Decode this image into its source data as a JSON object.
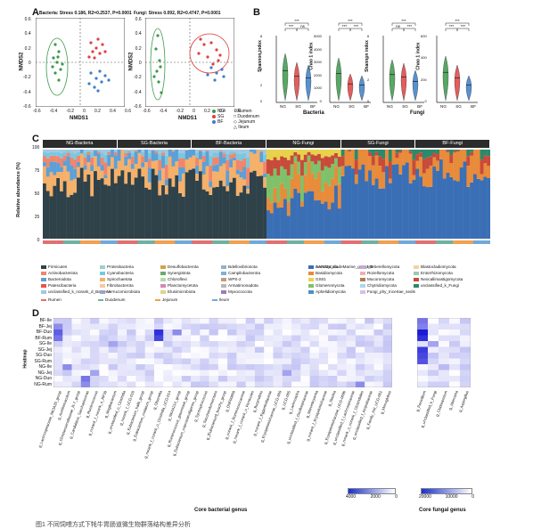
{
  "panels": {
    "A": {
      "letter": "A",
      "left_title": "Bacteria: Stress 0.186, R2=0.2537, P=0.0001",
      "right_title": "Fungi: Stress 0.092, R2=0.4747, P=0.0001",
      "xlabel": "NMDS1",
      "ylabel": "NMDS2",
      "left_xticks": [
        "-0.6",
        "-0.4",
        "-0.2",
        "0",
        "0.2",
        "0.4",
        "0.6"
      ],
      "left_yticks": [
        "0.6",
        "0.4",
        "0.2",
        "0",
        "-0.2",
        "-0.4",
        "-0.6"
      ],
      "right_xticks": [
        "-0.6",
        "-0.4",
        "-0.2",
        "0",
        "0.2",
        "0.4",
        "0.6"
      ],
      "right_yticks": [
        "0.6",
        "0.4",
        "0.2",
        "0",
        "-0.2",
        "-0.4",
        "-0.6"
      ],
      "legend_groups": [
        "NG",
        "SG",
        "BF"
      ],
      "legend_sites": [
        "Rumen",
        "Duodenum",
        "Jejunum",
        "Ileum"
      ]
    },
    "B": {
      "letter": "B",
      "plots": [
        {
          "ylabel": "Shannon index",
          "group": "Bacteria",
          "sig": [
            "***",
            "***",
            "ns"
          ],
          "yticks": [
            "8",
            "6",
            "4",
            "2",
            "0"
          ]
        },
        {
          "ylabel": "Chao 1 index",
          "group": "Bacteria",
          "sig": [
            "***",
            "***",
            "***"
          ],
          "yticks": [
            "5000",
            "4000",
            "3000",
            "2000",
            "1000",
            "0"
          ]
        },
        {
          "ylabel": "Shannon index",
          "group": "Fungi",
          "sig": [
            "***",
            "ns",
            "***"
          ],
          "yticks": [
            "6",
            "4",
            "2",
            "0"
          ]
        },
        {
          "ylabel": "Chao 1 index",
          "group": "Fungi",
          "sig": [
            "***",
            "***",
            "***"
          ],
          "yticks": [
            "600",
            "400",
            "200",
            "0"
          ]
        }
      ],
      "categories": [
        "NG",
        "SG",
        "BF"
      ],
      "group_labels": [
        "Bacteria",
        "Fungi"
      ]
    },
    "C": {
      "letter": "C",
      "ylabel": "Relative abundance (%)",
      "yticks": [
        "100",
        "75",
        "50",
        "25",
        "0"
      ],
      "group_headers": [
        "NG-Bacteria",
        "SG-Bacteria",
        "BF-Bacteria",
        "NG-Fungi",
        "SG-Fungi",
        "BF-Fungi"
      ],
      "bacteria_legend": [
        {
          "label": "Firmicutes",
          "color": "#2f4249"
        },
        {
          "label": "Actinobacteriota",
          "color": "#f0866d"
        },
        {
          "label": "Bacteroidota",
          "color": "#5ca0d8"
        },
        {
          "label": "Patescibacteria",
          "color": "#e8554a"
        },
        {
          "label": "unclassified_k_norank_d_Bacteria",
          "color": "#a0c8e0"
        },
        {
          "label": "Proteobacteria",
          "color": "#9bd1c8"
        },
        {
          "label": "Cyanobacteria",
          "color": "#78c8e0"
        },
        {
          "label": "Spirochaetota",
          "color": "#f5b06a"
        },
        {
          "label": "Fibrobacterota",
          "color": "#f7c89a"
        },
        {
          "label": "Verrucomicrobiota",
          "color": "#9aa5c9"
        },
        {
          "label": "Desulfobacterota",
          "color": "#d6a04a"
        },
        {
          "label": "Synergistota",
          "color": "#6ba96e"
        },
        {
          "label": "Chloroflexi",
          "color": "#b4d9a5"
        },
        {
          "label": "Planctomycetota",
          "color": "#d38ab8"
        },
        {
          "label": "Elusimicrobiota",
          "color": "#e6d28a"
        },
        {
          "label": "Bdellovibrionota",
          "color": "#89b5c9"
        },
        {
          "label": "Campilobacterota",
          "color": "#7fb0d6"
        },
        {
          "label": "WPS-2",
          "color": "#c89a7a"
        },
        {
          "label": "Armatimonadota",
          "color": "#b8b8b8"
        },
        {
          "label": "Myxococcota",
          "color": "#9d7ab8"
        },
        {
          "label": "SAR324_cladeMarine_group_B",
          "color": "#c9e3f0"
        }
      ],
      "fungi_legend": [
        {
          "label": "Ascomycota",
          "color": "#3a6fb5"
        },
        {
          "label": "Basidiomycota",
          "color": "#e88b3a"
        },
        {
          "label": "GS01",
          "color": "#e8d24a"
        },
        {
          "label": "Glomeromycota",
          "color": "#7fc16a"
        },
        {
          "label": "Aphelidiomycota",
          "color": "#4a90c8"
        },
        {
          "label": "Mortierellomycota",
          "color": "#c8a8d8"
        },
        {
          "label": "Rozellomycota",
          "color": "#f0b0b0"
        },
        {
          "label": "Mucoromycota",
          "color": "#b07a5a"
        },
        {
          "label": "Chytridiomycota",
          "color": "#a8d8e8"
        },
        {
          "label": "Fungi_phy_Incertae_sedis",
          "color": "#d8c0e8"
        },
        {
          "label": "Blastocladiomycota",
          "color": "#f5d0a0"
        },
        {
          "label": "Entorrhizomycota",
          "color": "#9cc8b0"
        },
        {
          "label": "Neocallimastigomycota",
          "color": "#c84a3a"
        },
        {
          "label": "unclassified_k_Fungi",
          "color": "#2a8a6a"
        }
      ],
      "site_legend": [
        {
          "label": "Rumen",
          "color": "#e07070"
        },
        {
          "label": "Duodenum",
          "color": "#70b0a0"
        },
        {
          "label": "Jejunum",
          "color": "#f0a050"
        },
        {
          "label": "Ileum",
          "color": "#70a8d8"
        }
      ]
    },
    "D": {
      "letter": "D",
      "ylabel": "Heatmap",
      "rows": [
        "BF-Ile",
        "BF-Jej",
        "BF-Duo",
        "BF-Rum",
        "SG-Ile",
        "SG-Jej",
        "SG-Duo",
        "SG-Rum",
        "NG-Ile",
        "NG-Jej",
        "NG-Duo",
        "NG-Rum"
      ],
      "bacterial_genera": [
        "g_Lachnospiraceae_NK3A20_group",
        "g_Acetitomaculum",
        "g_Christensenellaceae_R-7_group",
        "g_Candidatus_Saccharimonas",
        "g_Ruminococcus",
        "g_norank_f_norank_o_RF39",
        "g_Mogibacterium",
        "g_unclassified_o_Clostridia",
        "g_norank_f_UCG-010",
        "g_Eubacterium_hallii_group",
        "g_Eubacterium_nodatum_group",
        "g_Olsenella",
        "g_norank_f_norank_o_Clostridia_UCG-014",
        "g_NK4A214_group",
        "g_Ruminococcus_gauvreauii_group",
        "g_Eubacterium_coprostanoligenes_group",
        "g_Syntrophococcus",
        "g_Saccharofermentans",
        "g_[Eubacterium]_brachy_group",
        "g_DNF00809",
        "g_norank_f_Ruminococcaceae",
        "g_norank_f_norank_o_Firmicutes",
        "g_Butyrivibrio",
        "g_norank_f_Eggerthellaceae",
        "g_Erysipelotrichaceae_UCG-009",
        "g_UCG-005",
        "g_Lachnospira",
        "g_unclassified_f_Oscillospiraceae",
        "g_Marvinbryantia",
        "g_norank_f_Erysipelotrichaceae",
        "g_Slackia",
        "g_Erysipelotrichaceae_UCG-009b",
        "g_unclassified_f_Lachnospiraceae",
        "g_norank_o_norank_f_Clostridiales",
        "g_unclassified_f_Atopobiaceae",
        "g_Family_XIII_UCG-001",
        "g_Monoglobus"
      ],
      "fungal_genera": [
        "g_Penicillium",
        "g_unclassified_k_Fungi",
        "g_Cladosporium",
        "g_Alternaria",
        "g_Aspergillus"
      ],
      "bacterial_xlabel": "Core bacterial genus",
      "fungal_xlabel": "Core fungal genus",
      "bacterial_scale": [
        "4000",
        "2000",
        "0"
      ],
      "fungal_scale": [
        "20000",
        "10000",
        "0"
      ]
    }
  },
  "caption": "图1 不同饲喂方式下牦牛胃肠道微生物群落结构差异分析"
}
